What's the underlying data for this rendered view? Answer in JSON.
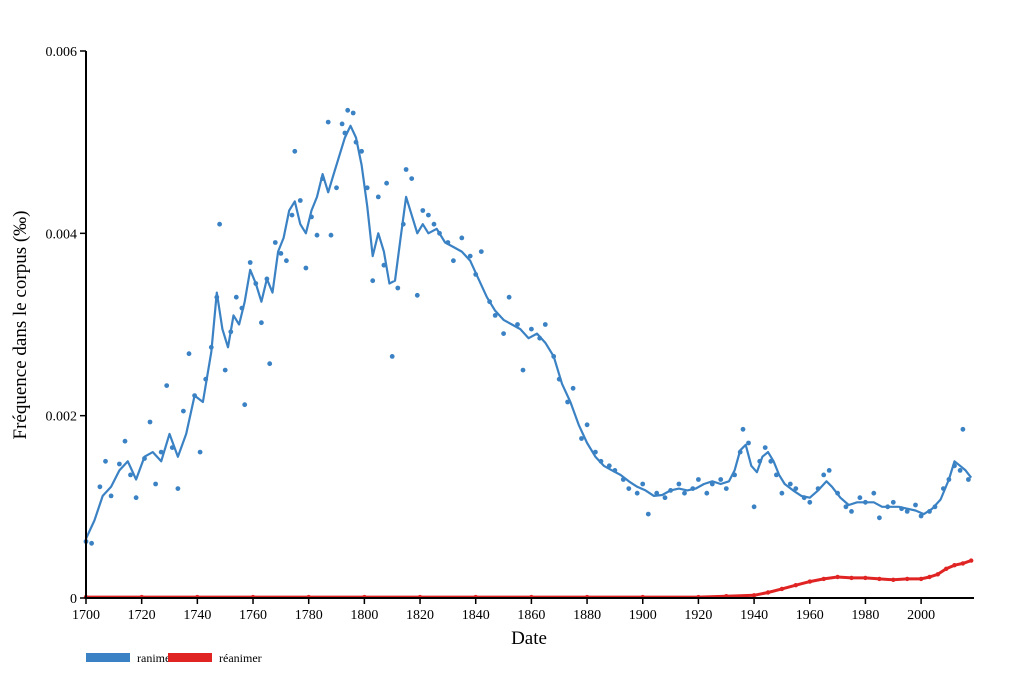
{
  "chart_data": {
    "type": "scatter",
    "xlabel": "Date",
    "ylabel": "Fréquence dans le corpus (‰)",
    "xlim": [
      1700,
      2019
    ],
    "ylim": [
      0,
      0.006
    ],
    "x_ticks": [
      "1700",
      "1720",
      "1740",
      "1760",
      "1780",
      "1800",
      "1820",
      "1840",
      "1860",
      "1880",
      "1900",
      "1920",
      "1940",
      "1960",
      "1980",
      "2000"
    ],
    "y_ticks": [
      "0",
      "0.002",
      "0.004",
      "0.006"
    ],
    "legend_position": "bottom-left",
    "series": [
      {
        "name": "ranimer",
        "color": "#3b82c4",
        "points": [
          [
            1700,
            0.00062
          ],
          [
            1702,
            0.0006
          ],
          [
            1705,
            0.00122
          ],
          [
            1707,
            0.0015
          ],
          [
            1709,
            0.00112
          ],
          [
            1712,
            0.00147
          ],
          [
            1714,
            0.00172
          ],
          [
            1716,
            0.00135
          ],
          [
            1718,
            0.0011
          ],
          [
            1721,
            0.00153
          ],
          [
            1723,
            0.00193
          ],
          [
            1725,
            0.00125
          ],
          [
            1727,
            0.0016
          ],
          [
            1729,
            0.00233
          ],
          [
            1731,
            0.00165
          ],
          [
            1733,
            0.0012
          ],
          [
            1735,
            0.00205
          ],
          [
            1737,
            0.00268
          ],
          [
            1739,
            0.00222
          ],
          [
            1741,
            0.0016
          ],
          [
            1743,
            0.0024
          ],
          [
            1745,
            0.00275
          ],
          [
            1747,
            0.0033
          ],
          [
            1748,
            0.0041
          ],
          [
            1750,
            0.0025
          ],
          [
            1752,
            0.00292
          ],
          [
            1754,
            0.0033
          ],
          [
            1756,
            0.00318
          ],
          [
            1757,
            0.00212
          ],
          [
            1759,
            0.00368
          ],
          [
            1761,
            0.00345
          ],
          [
            1763,
            0.00302
          ],
          [
            1765,
            0.0035
          ],
          [
            1766,
            0.00257
          ],
          [
            1768,
            0.0039
          ],
          [
            1770,
            0.00378
          ],
          [
            1772,
            0.0037
          ],
          [
            1774,
            0.0042
          ],
          [
            1775,
            0.0049
          ],
          [
            1777,
            0.00436
          ],
          [
            1779,
            0.00362
          ],
          [
            1781,
            0.00418
          ],
          [
            1783,
            0.00398
          ],
          [
            1785,
            0.0046
          ],
          [
            1787,
            0.00522
          ],
          [
            1788,
            0.00398
          ],
          [
            1790,
            0.0045
          ],
          [
            1792,
            0.0052
          ],
          [
            1793,
            0.0051
          ],
          [
            1794,
            0.00535
          ],
          [
            1796,
            0.00532
          ],
          [
            1797,
            0.005
          ],
          [
            1799,
            0.0049
          ],
          [
            1801,
            0.0045
          ],
          [
            1803,
            0.00348
          ],
          [
            1805,
            0.0044
          ],
          [
            1807,
            0.00365
          ],
          [
            1808,
            0.00455
          ],
          [
            1810,
            0.00265
          ],
          [
            1812,
            0.0034
          ],
          [
            1814,
            0.0041
          ],
          [
            1815,
            0.0047
          ],
          [
            1817,
            0.0046
          ],
          [
            1819,
            0.00332
          ],
          [
            1821,
            0.00425
          ],
          [
            1823,
            0.0042
          ],
          [
            1825,
            0.0041
          ],
          [
            1827,
            0.004
          ],
          [
            1830,
            0.0039
          ],
          [
            1832,
            0.0037
          ],
          [
            1835,
            0.00395
          ],
          [
            1838,
            0.00375
          ],
          [
            1840,
            0.00355
          ],
          [
            1842,
            0.0038
          ],
          [
            1845,
            0.00325
          ],
          [
            1847,
            0.0031
          ],
          [
            1850,
            0.0029
          ],
          [
            1852,
            0.0033
          ],
          [
            1855,
            0.003
          ],
          [
            1857,
            0.0025
          ],
          [
            1860,
            0.00295
          ],
          [
            1863,
            0.00285
          ],
          [
            1865,
            0.003
          ],
          [
            1868,
            0.00265
          ],
          [
            1870,
            0.0024
          ],
          [
            1873,
            0.00215
          ],
          [
            1875,
            0.0023
          ],
          [
            1878,
            0.00175
          ],
          [
            1880,
            0.0019
          ],
          [
            1883,
            0.0016
          ],
          [
            1885,
            0.0015
          ],
          [
            1888,
            0.00145
          ],
          [
            1890,
            0.0014
          ],
          [
            1893,
            0.0013
          ],
          [
            1895,
            0.0012
          ],
          [
            1898,
            0.00115
          ],
          [
            1900,
            0.00125
          ],
          [
            1902,
            0.00092
          ],
          [
            1905,
            0.00115
          ],
          [
            1908,
            0.0011
          ],
          [
            1910,
            0.00118
          ],
          [
            1913,
            0.00125
          ],
          [
            1915,
            0.00115
          ],
          [
            1918,
            0.0012
          ],
          [
            1920,
            0.0013
          ],
          [
            1923,
            0.00115
          ],
          [
            1925,
            0.00125
          ],
          [
            1928,
            0.0013
          ],
          [
            1930,
            0.0012
          ],
          [
            1933,
            0.00135
          ],
          [
            1935,
            0.0016
          ],
          [
            1936,
            0.00185
          ],
          [
            1938,
            0.0017
          ],
          [
            1940,
            0.001
          ],
          [
            1942,
            0.0015
          ],
          [
            1944,
            0.00165
          ],
          [
            1946,
            0.0015
          ],
          [
            1948,
            0.00135
          ],
          [
            1950,
            0.00115
          ],
          [
            1953,
            0.00125
          ],
          [
            1955,
            0.0012
          ],
          [
            1958,
            0.0011
          ],
          [
            1960,
            0.00105
          ],
          [
            1963,
            0.0012
          ],
          [
            1965,
            0.00135
          ],
          [
            1967,
            0.0014
          ],
          [
            1970,
            0.00115
          ],
          [
            1973,
            0.001
          ],
          [
            1975,
            0.00095
          ],
          [
            1978,
            0.0011
          ],
          [
            1980,
            0.00105
          ],
          [
            1983,
            0.00115
          ],
          [
            1985,
            0.00088
          ],
          [
            1988,
            0.001
          ],
          [
            1990,
            0.00105
          ],
          [
            1993,
            0.00098
          ],
          [
            1995,
            0.00095
          ],
          [
            1998,
            0.00102
          ],
          [
            2000,
            0.0009
          ],
          [
            2003,
            0.00095
          ],
          [
            2005,
            0.001
          ],
          [
            2008,
            0.0012
          ],
          [
            2010,
            0.0013
          ],
          [
            2012,
            0.00145
          ],
          [
            2014,
            0.0014
          ],
          [
            2015,
            0.00185
          ],
          [
            2017,
            0.0013
          ]
        ],
        "smoothed": [
          [
            1700,
            0.00065
          ],
          [
            1703,
            0.00085
          ],
          [
            1706,
            0.00112
          ],
          [
            1709,
            0.00122
          ],
          [
            1712,
            0.0014
          ],
          [
            1715,
            0.0015
          ],
          [
            1718,
            0.0013
          ],
          [
            1721,
            0.00155
          ],
          [
            1724,
            0.0016
          ],
          [
            1727,
            0.0015
          ],
          [
            1730,
            0.0018
          ],
          [
            1733,
            0.00155
          ],
          [
            1736,
            0.0018
          ],
          [
            1739,
            0.00222
          ],
          [
            1742,
            0.00215
          ],
          [
            1745,
            0.0027
          ],
          [
            1747,
            0.00335
          ],
          [
            1749,
            0.00295
          ],
          [
            1751,
            0.00275
          ],
          [
            1753,
            0.0031
          ],
          [
            1755,
            0.003
          ],
          [
            1757,
            0.00325
          ],
          [
            1759,
            0.0036
          ],
          [
            1761,
            0.00345
          ],
          [
            1763,
            0.00325
          ],
          [
            1765,
            0.0035
          ],
          [
            1767,
            0.00335
          ],
          [
            1769,
            0.0038
          ],
          [
            1771,
            0.00395
          ],
          [
            1773,
            0.00425
          ],
          [
            1775,
            0.00435
          ],
          [
            1777,
            0.0041
          ],
          [
            1779,
            0.004
          ],
          [
            1781,
            0.00425
          ],
          [
            1783,
            0.0044
          ],
          [
            1785,
            0.00465
          ],
          [
            1787,
            0.00445
          ],
          [
            1789,
            0.00465
          ],
          [
            1791,
            0.00485
          ],
          [
            1793,
            0.00505
          ],
          [
            1795,
            0.00518
          ],
          [
            1797,
            0.00505
          ],
          [
            1799,
            0.00475
          ],
          [
            1801,
            0.0043
          ],
          [
            1803,
            0.00375
          ],
          [
            1805,
            0.004
          ],
          [
            1807,
            0.0038
          ],
          [
            1809,
            0.00345
          ],
          [
            1811,
            0.00348
          ],
          [
            1813,
            0.00395
          ],
          [
            1815,
            0.0044
          ],
          [
            1817,
            0.0042
          ],
          [
            1819,
            0.004
          ],
          [
            1821,
            0.0041
          ],
          [
            1823,
            0.004
          ],
          [
            1826,
            0.00405
          ],
          [
            1829,
            0.0039
          ],
          [
            1832,
            0.00385
          ],
          [
            1835,
            0.0038
          ],
          [
            1838,
            0.0037
          ],
          [
            1841,
            0.0035
          ],
          [
            1844,
            0.0033
          ],
          [
            1847,
            0.00315
          ],
          [
            1850,
            0.00305
          ],
          [
            1853,
            0.003
          ],
          [
            1856,
            0.00295
          ],
          [
            1859,
            0.00285
          ],
          [
            1862,
            0.0029
          ],
          [
            1865,
            0.0028
          ],
          [
            1868,
            0.00265
          ],
          [
            1871,
            0.00235
          ],
          [
            1874,
            0.00215
          ],
          [
            1877,
            0.0019
          ],
          [
            1880,
            0.0017
          ],
          [
            1883,
            0.00155
          ],
          [
            1886,
            0.00145
          ],
          [
            1889,
            0.0014
          ],
          [
            1892,
            0.00135
          ],
          [
            1895,
            0.00128
          ],
          [
            1898,
            0.00122
          ],
          [
            1901,
            0.00118
          ],
          [
            1904,
            0.00112
          ],
          [
            1907,
            0.00113
          ],
          [
            1910,
            0.00118
          ],
          [
            1913,
            0.0012
          ],
          [
            1916,
            0.00118
          ],
          [
            1919,
            0.0012
          ],
          [
            1922,
            0.00125
          ],
          [
            1925,
            0.00128
          ],
          [
            1928,
            0.00125
          ],
          [
            1931,
            0.00128
          ],
          [
            1933,
            0.0014
          ],
          [
            1935,
            0.00162
          ],
          [
            1937,
            0.00168
          ],
          [
            1939,
            0.00145
          ],
          [
            1941,
            0.00138
          ],
          [
            1943,
            0.00155
          ],
          [
            1945,
            0.0016
          ],
          [
            1947,
            0.0015
          ],
          [
            1949,
            0.00135
          ],
          [
            1951,
            0.00125
          ],
          [
            1954,
            0.00118
          ],
          [
            1957,
            0.00112
          ],
          [
            1960,
            0.0011
          ],
          [
            1963,
            0.00118
          ],
          [
            1966,
            0.00128
          ],
          [
            1968,
            0.00122
          ],
          [
            1971,
            0.0011
          ],
          [
            1974,
            0.00102
          ],
          [
            1977,
            0.00105
          ],
          [
            1980,
            0.00105
          ],
          [
            1983,
            0.00105
          ],
          [
            1986,
            0.001
          ],
          [
            1989,
            0.001
          ],
          [
            1992,
            0.001
          ],
          [
            1995,
            0.00098
          ],
          [
            1998,
            0.00096
          ],
          [
            2001,
            0.00092
          ],
          [
            2004,
            0.00098
          ],
          [
            2007,
            0.00108
          ],
          [
            2010,
            0.0013
          ],
          [
            2012,
            0.0015
          ],
          [
            2014,
            0.00145
          ],
          [
            2016,
            0.0014
          ],
          [
            2018,
            0.00132
          ]
        ]
      },
      {
        "name": "réanimer",
        "color": "#e02424",
        "points": [
          [
            1700,
            1e-05
          ],
          [
            1720,
            1e-05
          ],
          [
            1740,
            1e-05
          ],
          [
            1760,
            1e-05
          ],
          [
            1780,
            1e-05
          ],
          [
            1800,
            1e-05
          ],
          [
            1820,
            1e-05
          ],
          [
            1840,
            1e-05
          ],
          [
            1860,
            1e-05
          ],
          [
            1880,
            1e-05
          ],
          [
            1900,
            1e-05
          ],
          [
            1920,
            1e-05
          ],
          [
            1930,
            2e-05
          ],
          [
            1940,
            3e-05
          ],
          [
            1945,
            6e-05
          ],
          [
            1950,
            0.0001
          ],
          [
            1955,
            0.00014
          ],
          [
            1960,
            0.00018
          ],
          [
            1965,
            0.00021
          ],
          [
            1970,
            0.00023
          ],
          [
            1975,
            0.00022
          ],
          [
            1980,
            0.00022
          ],
          [
            1985,
            0.00021
          ],
          [
            1990,
            0.0002
          ],
          [
            1995,
            0.00021
          ],
          [
            2000,
            0.00021
          ],
          [
            2003,
            0.00023
          ],
          [
            2006,
            0.00026
          ],
          [
            2009,
            0.00032
          ],
          [
            2012,
            0.00036
          ],
          [
            2015,
            0.00038
          ],
          [
            2018,
            0.00041
          ]
        ]
      }
    ]
  }
}
